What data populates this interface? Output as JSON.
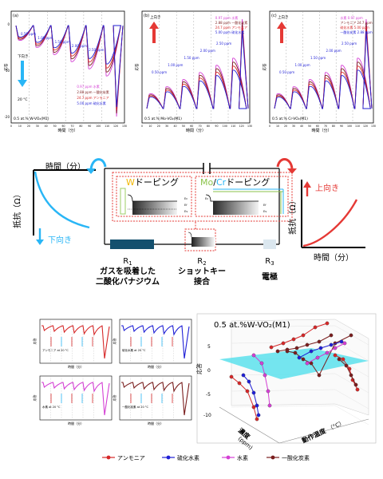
{
  "top_panels": [
    {
      "letter": "(a)",
      "ylabel": "応答",
      "xlabel": "時間（分）",
      "direction_label": "下向き",
      "temp_label": "20 °C",
      "footer": "0.5 at.% W-VO₂(M1)",
      "legend": [
        "0.97 ppm 水素",
        "2.88 ppm 一酸化炭素",
        "24.7 ppm アンモニア",
        "5.00 ppm 硫化水素"
      ],
      "conc_labels": [
        "0.50 ppm",
        "1.00 ppm",
        "1.50 ppm",
        "2.00 ppm",
        "2.50 ppm"
      ],
      "yticks": [
        "0",
        "-10",
        "-20"
      ],
      "xticks": [
        "0",
        "10",
        "20",
        "30",
        "40",
        "50",
        "60",
        "70",
        "80",
        "90",
        "100",
        "110",
        "120",
        "130"
      ]
    },
    {
      "letter": "(b)",
      "ylabel": "応答",
      "xlabel": "時間（分）",
      "direction_label": "上向き",
      "footer": "0.5 at.% Mo-VO₂(M1)",
      "legend": [
        "0.97 ppm 水素",
        "2.88 ppm 一酸化炭素",
        "24.7 ppm アンモニア",
        "5.00 ppm 硫化水素"
      ],
      "conc_labels": [
        "0.50 ppm",
        "1.00 ppm",
        "1.50 ppm",
        "2.00 ppm",
        "2.50 ppm"
      ],
      "xticks": [
        "0",
        "10",
        "20",
        "30",
        "40",
        "50",
        "60",
        "70",
        "80",
        "90",
        "100",
        "110",
        "120",
        "130"
      ]
    },
    {
      "letter": "(c)",
      "ylabel": "応答",
      "xlabel": "時間（分）",
      "direction_label": "上向き",
      "footer": "0.5 at.% Cr-VO₂(M1)",
      "legend": [
        "水素 0.97 ppm",
        "アンモニア 24.7 ppm",
        "硫化水素 5.00 ppm",
        "一酸化炭素 2.88 ppm"
      ],
      "conc_labels": [
        "0.50 ppm",
        "1.00 ppm",
        "1.50 ppm",
        "2.00 ppm",
        "2.50 ppm"
      ],
      "xticks": [
        "0",
        "10",
        "20",
        "30",
        "40",
        "50",
        "60",
        "70",
        "80",
        "90",
        "100",
        "110",
        "120",
        "130"
      ]
    }
  ],
  "diagram": {
    "left_xlabel": "時間（分）",
    "left_ylabel": "抵抗（Ω）",
    "left_direction": "下向き",
    "right_xlabel": "時間（分）",
    "right_ylabel": "抵抗（Ω）",
    "right_direction": "上向き",
    "w_box_prefix": "W",
    "w_box_suffix": "ドーピング",
    "mo_box_mo": "Mo",
    "mo_box_slash": "/",
    "mo_box_cr": "Cr",
    "mo_box_suffix": "ドーピング",
    "r1_label": "R",
    "r1_sub": "1",
    "r1_desc_line1": "ガスを吸着した",
    "r1_desc_line2": "二酸化バナジウム",
    "r2_label": "R",
    "r2_sub": "2",
    "r2_desc_line1": "ショットキー",
    "r2_desc_line2": "接合",
    "r3_label": "R",
    "r3_sub": "3",
    "r3_desc": "電極",
    "band_ec": "Ec",
    "band_ef": "Ef",
    "band_ev": "Ev",
    "band_ev2": "Ev"
  },
  "bottom_small": [
    {
      "color": "#d62728",
      "label": "アンモニア at 20 °C"
    },
    {
      "color": "#1f1fd6",
      "label": "硫化水素 at 20 °C"
    },
    {
      "color": "#d43fd4",
      "label": "水素 at 20 °C"
    },
    {
      "color": "#7a1e1e",
      "label": "一酸化炭素 at 20 °C"
    }
  ],
  "bottom_small_axis": {
    "ylabel": "応答",
    "xlabel": "時間（分）"
  },
  "plot3d": {
    "title": "0.5 at.%W-VO₂(M1)",
    "zlabel": "応答",
    "depth_label": "濃度",
    "depth_unit": "(ppm)",
    "temp_label": "動作温度",
    "temp_unit": "（°C）",
    "zticks": [
      "5",
      "0",
      "-5",
      "-10"
    ]
  },
  "legend": [
    {
      "name": "アンモニア",
      "color": "#d62728"
    },
    {
      "name": "硫化水素",
      "color": "#1f1fd6"
    },
    {
      "name": "水素",
      "color": "#d43fd4"
    },
    {
      "name": "一酸化炭素",
      "color": "#7a1e1e"
    }
  ]
}
